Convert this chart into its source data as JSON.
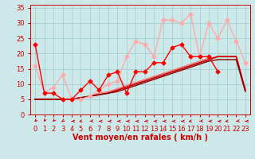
{
  "background_color": "#cce8e8",
  "grid_color": "#99cccc",
  "xlabel": "Vent moyen/en rafales ( km/h )",
  "xlabel_color": "#cc0000",
  "tick_color": "#cc0000",
  "xlim": [
    -0.5,
    23.5
  ],
  "ylim": [
    0,
    36
  ],
  "yticks": [
    0,
    5,
    10,
    15,
    20,
    25,
    30,
    35
  ],
  "xticks": [
    0,
    1,
    2,
    3,
    4,
    5,
    6,
    7,
    8,
    9,
    10,
    11,
    12,
    13,
    14,
    15,
    16,
    17,
    18,
    19,
    20,
    21,
    22,
    23
  ],
  "series": [
    {
      "x": [
        0,
        1,
        2,
        3,
        4,
        5,
        6,
        7,
        8,
        9,
        10,
        11,
        12,
        13,
        14,
        15,
        16,
        17,
        18,
        19,
        20
      ],
      "y": [
        23,
        7,
        7,
        5,
        5,
        8,
        11,
        8,
        13,
        14,
        7,
        14,
        14,
        17,
        17,
        22,
        23,
        19,
        19,
        19,
        14
      ],
      "color": "#ff0000",
      "lw": 1.0,
      "marker": "D",
      "ms": 2.5,
      "zorder": 5
    },
    {
      "x": [
        0,
        1,
        2,
        3,
        4,
        5,
        6,
        7,
        8,
        9,
        10,
        11,
        12,
        13,
        14,
        15,
        16,
        17,
        18,
        19,
        20,
        21,
        22,
        23
      ],
      "y": [
        16,
        7,
        9,
        13,
        5,
        5,
        6,
        8,
        10,
        11,
        19,
        24,
        23,
        19,
        31,
        31,
        30,
        33,
        19,
        30,
        25,
        31,
        24,
        17
      ],
      "color": "#ffaaaa",
      "lw": 1.0,
      "marker": "D",
      "ms": 2.5,
      "zorder": 4
    },
    {
      "x": [
        0,
        1,
        2,
        3,
        4,
        5,
        6,
        7,
        8,
        9,
        10,
        11,
        12,
        13,
        14,
        15,
        16,
        17,
        18,
        19,
        20,
        21,
        22,
        23
      ],
      "y": [
        5,
        5,
        5,
        5,
        5,
        5.5,
        6,
        6.5,
        7,
        8,
        9,
        10,
        11,
        12,
        13,
        14,
        15,
        16,
        17,
        18,
        19,
        19,
        19,
        8
      ],
      "color": "#cc0000",
      "lw": 1.3,
      "marker": null,
      "ms": 0,
      "zorder": 3
    },
    {
      "x": [
        0,
        1,
        2,
        3,
        4,
        5,
        6,
        7,
        8,
        9,
        10,
        11,
        12,
        13,
        14,
        15,
        16,
        17,
        18,
        19,
        20,
        21,
        22,
        23
      ],
      "y": [
        5,
        5,
        5,
        5,
        5,
        5.5,
        6,
        6.5,
        7,
        7.5,
        8.5,
        9.5,
        10.5,
        11.5,
        12.5,
        13.5,
        14.5,
        15.5,
        16.5,
        17.5,
        18,
        18,
        18,
        7.5
      ],
      "color": "#880000",
      "lw": 1.0,
      "marker": null,
      "ms": 0,
      "zorder": 3
    },
    {
      "x": [
        0,
        1,
        2,
        3,
        4,
        5,
        6,
        7,
        8,
        9,
        10,
        11,
        12,
        13,
        14,
        15,
        16,
        17,
        18,
        19,
        20,
        21,
        22,
        23
      ],
      "y": [
        5,
        5,
        5,
        5,
        5,
        5.5,
        6,
        7,
        7.5,
        8.5,
        9.5,
        10.5,
        11.5,
        12.5,
        13.5,
        14.5,
        15.5,
        16.5,
        17.5,
        18.5,
        19,
        19,
        19,
        8
      ],
      "color": "#ff6666",
      "lw": 0.8,
      "marker": null,
      "ms": 0,
      "zorder": 2
    }
  ],
  "wind_angles": [
    200,
    190,
    195,
    205,
    270,
    240,
    260,
    270,
    270,
    270,
    270,
    270,
    270,
    270,
    270,
    270,
    270,
    250,
    255,
    270,
    270,
    250,
    255,
    270
  ],
  "arrow_color": "#cc0000",
  "font_size_xlabel": 7,
  "font_size_tick": 6
}
